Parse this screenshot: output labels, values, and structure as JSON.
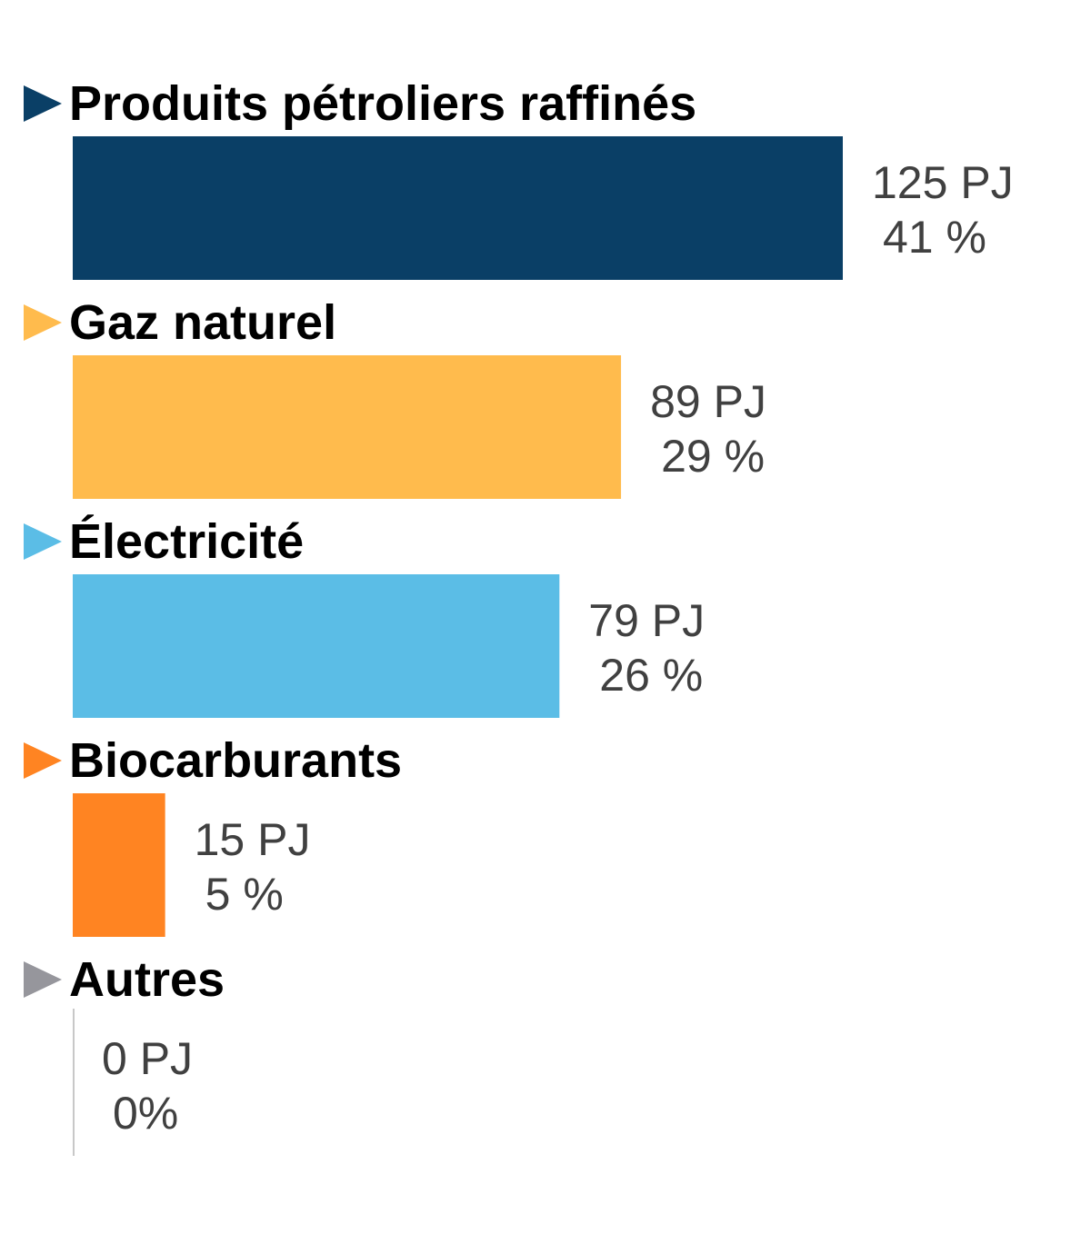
{
  "chart_data": {
    "type": "bar",
    "orientation": "horizontal",
    "categories": [
      "Produits pétroliers raffinés",
      "Gaz naturel",
      "Électricité",
      "Biocarburants",
      "Autres"
    ],
    "values": [
      125,
      89,
      79,
      15,
      0
    ],
    "value_labels": [
      "125 PJ",
      "89 PJ",
      "79 PJ",
      "15 PJ",
      "0 PJ"
    ],
    "percent_labels": [
      "41 %",
      "29 %",
      "26 %",
      "5 %",
      "0%"
    ],
    "unit": "PJ",
    "colors": [
      "#0a3f66",
      "#ffbb4d",
      "#5bbde6",
      "#ff8422",
      "#96969c"
    ],
    "grid": false,
    "legend": "none"
  }
}
